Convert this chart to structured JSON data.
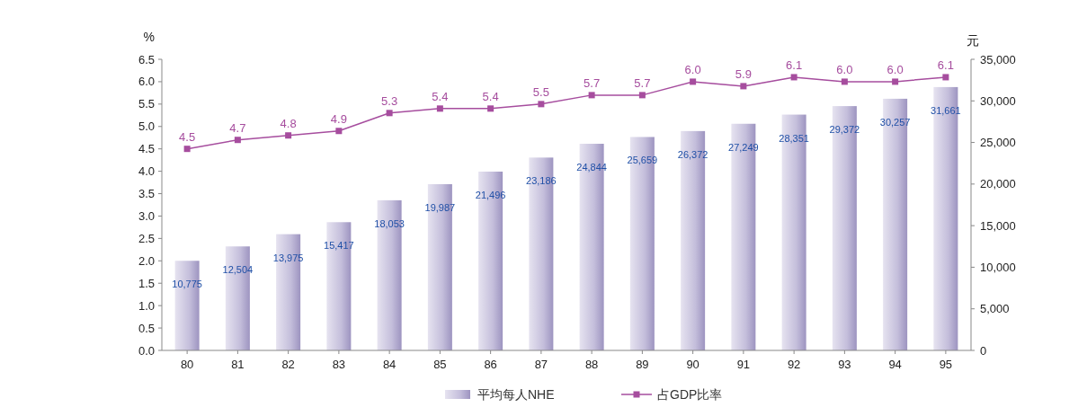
{
  "chart_data": {
    "type": "bar",
    "ylabel": "%",
    "y2label": "元",
    "categories": [
      "80",
      "81",
      "82",
      "83",
      "84",
      "85",
      "86",
      "87",
      "88",
      "89",
      "90",
      "91",
      "92",
      "93",
      "94",
      "95"
    ],
    "series": [
      {
        "name": "平均每人NHE",
        "axis": "y2",
        "color": "#c4bedb",
        "values": [
          10775,
          12504,
          13975,
          15417,
          18053,
          19987,
          21496,
          23186,
          24844,
          25659,
          26372,
          27249,
          28351,
          29372,
          30257,
          31661
        ],
        "value_labels": [
          "10,775",
          "12,504",
          "13,975",
          "15,417",
          "18,053",
          "19,987",
          "21,496",
          "23,186",
          "24,844",
          "25,659",
          "26,372",
          "27,249",
          "28,351",
          "29,372",
          "30,257",
          "31,661"
        ]
      },
      {
        "name": "占GDP比率",
        "type": "line",
        "color": "#a64d9e",
        "marker": "square",
        "values": [
          4.5,
          4.7,
          4.8,
          4.9,
          5.3,
          5.4,
          5.4,
          5.5,
          5.7,
          5.7,
          6.0,
          5.9,
          6.1,
          6.0,
          6.0,
          6.1
        ],
        "value_labels": [
          "4.5",
          "4.7",
          "4.8",
          "4.9",
          "5.3",
          "5.4",
          "5.4",
          "5.5",
          "5.7",
          "5.7",
          "6.0",
          "5.9",
          "6.1",
          "6.0",
          "6.0",
          "6.1"
        ]
      }
    ],
    "ylim": [
      0,
      6.5
    ],
    "yticks": [
      {
        "value": 0,
        "label": "0.0"
      },
      {
        "value": 0.5,
        "label": "0.5"
      },
      {
        "value": 1,
        "label": "1.0"
      },
      {
        "value": 1.5,
        "label": "1.5"
      },
      {
        "value": 2,
        "label": "2.0"
      },
      {
        "value": 2.5,
        "label": "2.5"
      },
      {
        "value": 3,
        "label": "3.0"
      },
      {
        "value": 3.5,
        "label": "3.5"
      },
      {
        "value": 4,
        "label": "4.0"
      },
      {
        "value": 4.5,
        "label": "4.5"
      },
      {
        "value": 5,
        "label": "5.0"
      },
      {
        "value": 5.5,
        "label": "5.5"
      },
      {
        "value": 6,
        "label": "6.0"
      },
      {
        "value": 6.5,
        "label": "6.5"
      }
    ],
    "y2lim": [
      0,
      35000
    ],
    "y2ticks": [
      0,
      {
        "value": 5000,
        "label": "5,000"
      },
      {
        "value": 10000,
        "label": "10,000"
      },
      {
        "value": 15000,
        "label": "15,000"
      },
      {
        "value": 20000,
        "label": "20,000"
      },
      {
        "value": 25000,
        "label": "25,000"
      },
      {
        "value": 30000,
        "label": "30,000"
      },
      {
        "value": 35000,
        "label": "35,000"
      }
    ],
    "grid": false,
    "legend": "bottom"
  }
}
